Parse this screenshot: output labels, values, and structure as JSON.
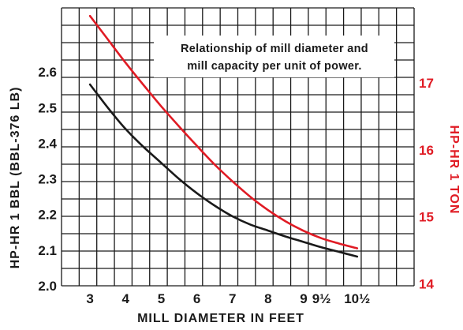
{
  "chart_data": {
    "type": "line",
    "title": "",
    "annotation_lines": [
      "Relationship of mill diameter and",
      "mill capacity per unit of power."
    ],
    "xlabel": "MILL DIAMETER IN FEET",
    "ylabel_left": "HP-HR 1 BBL (BBL-376 LB)",
    "ylabel_right": "HP-HR 1 TON",
    "x_ticks": [
      {
        "value": 3,
        "label": "3"
      },
      {
        "value": 4,
        "label": "4"
      },
      {
        "value": 5,
        "label": "5"
      },
      {
        "value": 6,
        "label": "6"
      },
      {
        "value": 7,
        "label": "7"
      },
      {
        "value": 8,
        "label": "8"
      },
      {
        "value": 9,
        "label": "9"
      },
      {
        "value": 9.5,
        "label": "9½"
      },
      {
        "value": 10.5,
        "label": "10½"
      }
    ],
    "y_left_ticks": [
      {
        "value": 2.0,
        "label": "2.0"
      },
      {
        "value": 2.1,
        "label": "2.1"
      },
      {
        "value": 2.2,
        "label": "2.2"
      },
      {
        "value": 2.3,
        "label": "2.3"
      },
      {
        "value": 2.4,
        "label": "2.4"
      },
      {
        "value": 2.5,
        "label": "2.5"
      },
      {
        "value": 2.6,
        "label": "2.6"
      }
    ],
    "y_right_ticks": [
      {
        "value": 14,
        "label": "14"
      },
      {
        "value": 15,
        "label": "15"
      },
      {
        "value": 16,
        "label": "16"
      },
      {
        "value": 17,
        "label": "17"
      }
    ],
    "xlim": [
      2.2,
      12.1
    ],
    "ylim_left": [
      2.0,
      2.78
    ],
    "ylim_right": [
      13.97,
      18.12
    ],
    "grid": true,
    "series": [
      {
        "axis": "left",
        "color": "#1a1a1a",
        "x": [
          3,
          3.5,
          4,
          4.5,
          5,
          5.5,
          6,
          6.5,
          7,
          7.5,
          8,
          8.5,
          9,
          9.5,
          10,
          10.5
        ],
        "y": [
          2.565,
          2.5,
          2.44,
          2.39,
          2.345,
          2.3,
          2.26,
          2.225,
          2.195,
          2.172,
          2.155,
          2.138,
          2.123,
          2.108,
          2.095,
          2.082
        ]
      },
      {
        "axis": "right",
        "color": "#e01b24",
        "x": [
          3,
          3.5,
          4,
          4.5,
          5,
          5.5,
          6,
          6.5,
          7,
          7.5,
          8,
          8.5,
          9,
          9.5,
          10,
          10.5
        ],
        "y": [
          18.0,
          17.65,
          17.3,
          16.97,
          16.65,
          16.35,
          16.06,
          15.78,
          15.53,
          15.3,
          15.1,
          14.93,
          14.79,
          14.68,
          14.6,
          14.53
        ]
      }
    ]
  }
}
